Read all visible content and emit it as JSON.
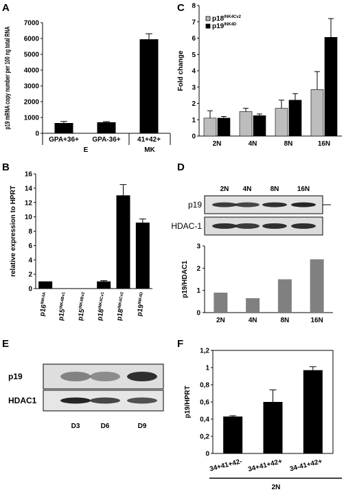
{
  "figure": {
    "panels": [
      {
        "id": "A",
        "letter": "A"
      },
      {
        "id": "B",
        "letter": "B"
      },
      {
        "id": "C",
        "letter": "C"
      },
      {
        "id": "D",
        "letter": "D"
      },
      {
        "id": "E",
        "letter": "E"
      },
      {
        "id": "F",
        "letter": "F"
      }
    ]
  },
  "chart_data": [
    {
      "panel": "A",
      "type": "bar",
      "categories": [
        "GPA+36+",
        "GPA-36+",
        "41+42+"
      ],
      "groups": [
        {
          "label": "E",
          "categories": [
            "GPA+36+",
            "GPA-36+"
          ]
        },
        {
          "label": "MK",
          "categories": [
            "41+42+"
          ]
        }
      ],
      "values": [
        650,
        700,
        5950
      ],
      "errors": [
        100,
        40,
        350
      ],
      "ylabel": "p19 mRNA copy number per 100 ng total RNA",
      "ylim": [
        0,
        7000
      ],
      "yticks": [
        "0",
        "1000",
        "2000",
        "3000",
        "4000",
        "5000",
        "6000",
        "7000"
      ],
      "color": "#000000"
    },
    {
      "panel": "B",
      "type": "bar",
      "categories": [
        {
          "base": "p16",
          "sup": "INK4A"
        },
        {
          "base": "p15",
          "sup": "INK4Bv1"
        },
        {
          "base": "p15",
          "sup": "INK4Bv2"
        },
        {
          "base": "p18",
          "sup": "INK4Cv1"
        },
        {
          "base": "p18",
          "sup": "INK4Cv2"
        },
        {
          "base": "p19",
          "sup": "INK4D"
        }
      ],
      "values": [
        1,
        0.05,
        0.05,
        1,
        13,
        9.2
      ],
      "errors": [
        0,
        0,
        0,
        0.1,
        1.5,
        0.5
      ],
      "ylabel": "relative expression to HPRT",
      "ylim": [
        0,
        16
      ],
      "yticks": [
        "0",
        "2",
        "4",
        "6",
        "8",
        "10",
        "12",
        "14",
        "16"
      ],
      "color": "#000000"
    },
    {
      "panel": "C",
      "type": "bar",
      "categories": [
        "2N",
        "4N",
        "8N",
        "16N"
      ],
      "series": [
        {
          "name": {
            "base": "p18",
            "sup": "INK4Cv2"
          },
          "values": [
            1.1,
            1.5,
            1.7,
            2.85
          ],
          "errors": [
            0.45,
            0.2,
            0.5,
            1.1
          ],
          "color": "#bdbdbd"
        },
        {
          "name": {
            "base": "p19",
            "sup": "INK4D"
          },
          "values": [
            1.1,
            1.25,
            2.2,
            6.05
          ],
          "errors": [
            0.1,
            0.1,
            0.4,
            1.15
          ],
          "color": "#000000"
        }
      ],
      "ylabel": "Fold change",
      "ylim": [
        0,
        8
      ],
      "yticks": [
        "0",
        "1",
        "2",
        "3",
        "4",
        "5",
        "6",
        "7",
        "8"
      ],
      "legend": "top-left"
    },
    {
      "panel": "D",
      "type": "bar",
      "blot": {
        "lanes": [
          "2N",
          "4N",
          "8N",
          "16N"
        ],
        "rows": [
          {
            "label": "p19",
            "intensity": [
              0.8,
              0.75,
              0.85,
              0.9
            ]
          },
          {
            "label": "HDAC-1",
            "intensity": [
              0.85,
              0.8,
              0.85,
              0.85
            ]
          }
        ]
      },
      "categories": [
        "2N",
        "4N",
        "8N",
        "16N"
      ],
      "values": [
        0.9,
        0.65,
        1.5,
        2.4
      ],
      "ylabel": "p19/HDAC1",
      "ylim": [
        0,
        3
      ],
      "yticks": [
        "0",
        "1",
        "2",
        "3"
      ],
      "color": "#808080"
    },
    {
      "panel": "E",
      "type": "table",
      "blot": {
        "lanes": [
          "D3",
          "D6",
          "D9"
        ],
        "rows": [
          {
            "label": "p19",
            "intensity": [
              0.45,
              0.4,
              0.85
            ]
          },
          {
            "label": "HDAC1",
            "intensity": [
              0.9,
              0.75,
              0.7
            ]
          }
        ]
      }
    },
    {
      "panel": "F",
      "type": "bar",
      "categories": [
        "34+41+42-",
        "34+41+42+",
        "34-41+42+"
      ],
      "values": [
        0.43,
        0.6,
        0.97
      ],
      "errors": [
        0.01,
        0.14,
        0.04
      ],
      "group_label": "2N",
      "ylabel": "p19/HPRT",
      "ylim": [
        0,
        1.2
      ],
      "yticks": [
        "0",
        "0,2",
        "0,4",
        "0,6",
        "0,8",
        "1",
        "1,2"
      ],
      "color": "#000000"
    }
  ]
}
